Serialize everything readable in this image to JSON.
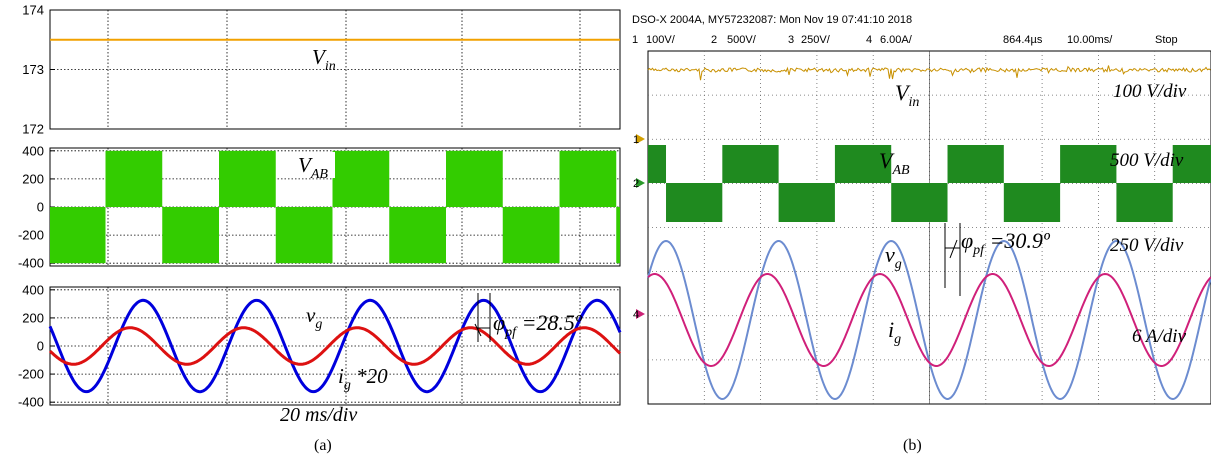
{
  "chart_data": [
    {
      "id": "a-top",
      "type": "line",
      "ylim": [
        172,
        174
      ],
      "yticks": [
        172,
        173,
        174
      ],
      "series": [
        {
          "label": "V",
          "sub": "in",
          "value": 173.5,
          "color": "#f2a100"
        }
      ]
    },
    {
      "id": "a-mid",
      "type": "area",
      "ylim": [
        -420,
        420
      ],
      "yticks": [
        -400,
        -200,
        0,
        200,
        400
      ],
      "series": [
        {
          "label": "V",
          "sub": "AB",
          "amplitude": 400,
          "color": "#33cc00"
        }
      ]
    },
    {
      "id": "a-bot",
      "type": "line",
      "ylim": [
        -420,
        420
      ],
      "yticks": [
        -400,
        -200,
        0,
        200,
        400
      ],
      "series": [
        {
          "label": "v",
          "sub": "g",
          "amplitude": 325,
          "color": "#0000dd"
        },
        {
          "label": "i",
          "sub": "g",
          "suffix": " *20",
          "amplitude": 130,
          "color": "#dd1111"
        }
      ],
      "annotation": {
        "label": "φ",
        "sub": "pf",
        "text": " =28.5º"
      },
      "xlabel": "20 ms/div",
      "caption": "(a)"
    },
    {
      "id": "b-scope",
      "type": "line",
      "header": "DSO-X 2004A, MY57232087: Mon Nov 19 07:41:10 2018",
      "channels": [
        {
          "num": "1",
          "scale": "100V/",
          "color": "#d4a000"
        },
        {
          "num": "2",
          "scale": "500V/",
          "color": "#2a9a2a"
        },
        {
          "num": "3",
          "scale": "250V/",
          "color": "#6a88c8"
        },
        {
          "num": "4",
          "scale": "6.00A/",
          "color": "#cc2277"
        }
      ],
      "time_offset": "864.4µs",
      "time_div": "10.00ms/",
      "run_state": "Stop",
      "signals": [
        {
          "label": "V",
          "sub": "in",
          "scale": "100 V/div",
          "color": "#c89000"
        },
        {
          "label": "V",
          "sub": "AB",
          "scale": "500 V/div",
          "color": "#1f8a1f"
        },
        {
          "label": "v",
          "sub": "g",
          "scale": "250 V/div",
          "color": "#6c8cd0"
        },
        {
          "label": "i",
          "sub": "g",
          "scale": "6 A/div",
          "color": "#d0207a"
        }
      ],
      "annotation": {
        "label": "φ",
        "sub": "pf",
        "text": " =30.9º"
      },
      "caption": "(b)"
    }
  ]
}
